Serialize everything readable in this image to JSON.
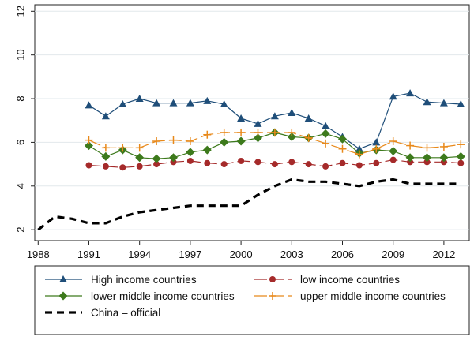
{
  "chart_data": {
    "type": "line",
    "title": "",
    "xlabel": "",
    "ylabel": "",
    "xlim": [
      1987.8,
      2013.5
    ],
    "ylim": [
      1.5,
      12.3
    ],
    "x_ticks": [
      1988,
      1991,
      1994,
      1997,
      2000,
      2003,
      2006,
      2009,
      2012
    ],
    "y_ticks": [
      2,
      4,
      6,
      8,
      10,
      12
    ],
    "grid": "horizontal",
    "legend_position": "bottom",
    "series": [
      {
        "name": "High income countries",
        "color": "#1f4e79",
        "marker": "triangle",
        "dash": "solid",
        "x": [
          1991,
          1992,
          1993,
          1994,
          1995,
          1996,
          1997,
          1998,
          1999,
          2000,
          2001,
          2002,
          2003,
          2004,
          2005,
          2006,
          2007,
          2008,
          2009,
          2010,
          2011,
          2012,
          2013
        ],
        "y": [
          7.7,
          7.2,
          7.75,
          8.0,
          7.8,
          7.8,
          7.8,
          7.9,
          7.75,
          7.1,
          6.85,
          7.2,
          7.35,
          7.1,
          6.75,
          6.25,
          5.7,
          6.0,
          8.1,
          8.25,
          7.85,
          7.8,
          7.75
        ]
      },
      {
        "name": "low income countries",
        "color": "#a52a2a",
        "marker": "circle",
        "dash": "longdash",
        "x": [
          1991,
          1992,
          1993,
          1994,
          1995,
          1996,
          1997,
          1998,
          1999,
          2000,
          2001,
          2002,
          2003,
          2004,
          2005,
          2006,
          2007,
          2008,
          2009,
          2010,
          2011,
          2012,
          2013
        ],
        "y": [
          4.95,
          4.9,
          4.85,
          4.9,
          5.0,
          5.1,
          5.15,
          5.05,
          5.0,
          5.15,
          5.1,
          5.0,
          5.1,
          5.0,
          4.9,
          5.05,
          4.95,
          5.05,
          5.2,
          5.1,
          5.1,
          5.1,
          5.05
        ]
      },
      {
        "name": "lower middle income countries",
        "color": "#3d7a1c",
        "marker": "diamond",
        "dash": "solid",
        "x": [
          1991,
          1992,
          1993,
          1994,
          1995,
          1996,
          1997,
          1998,
          1999,
          2000,
          2001,
          2002,
          2003,
          2004,
          2005,
          2006,
          2007,
          2008,
          2009,
          2010,
          2011,
          2012,
          2013
        ],
        "y": [
          5.85,
          5.35,
          5.65,
          5.3,
          5.25,
          5.3,
          5.55,
          5.65,
          6.0,
          6.05,
          6.2,
          6.45,
          6.25,
          6.2,
          6.4,
          6.15,
          5.5,
          5.65,
          5.6,
          5.3,
          5.3,
          5.3,
          5.35
        ]
      },
      {
        "name": "upper middle income countries",
        "color": "#e8891a",
        "marker": "plus",
        "dash": "longdash",
        "x": [
          1991,
          1992,
          1993,
          1994,
          1995,
          1996,
          1997,
          1998,
          1999,
          2000,
          2001,
          2002,
          2003,
          2004,
          2005,
          2006,
          2007,
          2008,
          2009,
          2010,
          2011,
          2012,
          2013
        ],
        "y": [
          6.1,
          5.75,
          5.75,
          5.75,
          6.05,
          6.1,
          6.05,
          6.35,
          6.45,
          6.45,
          6.45,
          6.45,
          6.45,
          6.2,
          5.95,
          5.7,
          5.45,
          5.7,
          6.05,
          5.85,
          5.75,
          5.8,
          5.9
        ]
      },
      {
        "name": "China – official",
        "color": "#000000",
        "marker": "none",
        "dash": "dashed",
        "x": [
          1988,
          1989,
          1990,
          1991,
          1992,
          1993,
          1994,
          1995,
          1996,
          1997,
          1998,
          1999,
          2000,
          2001,
          2002,
          2003,
          2004,
          2005,
          2006,
          2007,
          2008,
          2009,
          2010,
          2011,
          2012,
          2013
        ],
        "y": [
          2.0,
          2.6,
          2.5,
          2.3,
          2.3,
          2.6,
          2.8,
          2.9,
          3.0,
          3.1,
          3.1,
          3.1,
          3.1,
          3.6,
          4.0,
          4.3,
          4.2,
          4.2,
          4.1,
          4.0,
          4.2,
          4.3,
          4.1,
          4.1,
          4.1,
          4.1
        ]
      }
    ]
  }
}
